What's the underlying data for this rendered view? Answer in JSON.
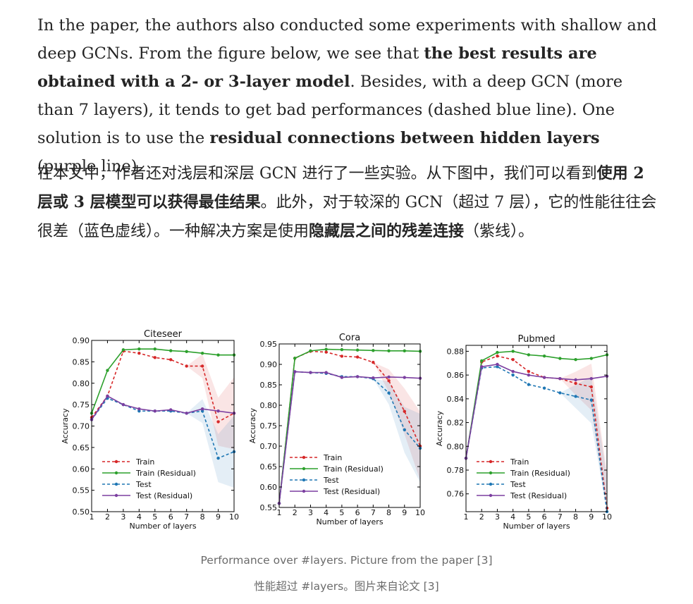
{
  "article": {
    "en": {
      "s1": "In the paper, the authors also conducted some experiments with shallow and deep GCNs. From the figure below, we see that ",
      "b1": "the best results are obtained with a 2- or 3-layer model",
      "s2": ". Besides, with a deep GCN (more than 7 layers), it tends to get bad performances (dashed blue line). One solution is to use the ",
      "b2": "residual connections between hidden layers",
      "s3": " (purple line)."
    },
    "zh": {
      "s1": "在本文中，作者还对浅层和深层 GCN 进行了一些实验。从下图中，我们可以看到",
      "b1": "使用 2 层或 3 层模型可以获得最佳结果",
      "s2": "。此外，对于较深的 GCN（超过 7 层），它的性能往往会很差（蓝色虚线）。一种解决方案是使用",
      "b2": "隐藏层之间的残差连接",
      "s3": "（紫线）。"
    }
  },
  "caption": {
    "en": "Performance over #layers. Picture from the paper [3]",
    "zh": "性能超过 #layers。图片来自论文 [3]"
  },
  "colors": {
    "train": "#d62728",
    "train_residual": "#2ca02c",
    "test": "#1f77b4",
    "test_residual": "#7b3fa0"
  },
  "chart_data": [
    {
      "type": "line",
      "title": "Citeseer",
      "xlabel": "Number of layers",
      "ylabel": "Accuracy",
      "x": [
        1,
        2,
        3,
        4,
        5,
        6,
        7,
        8,
        9,
        10
      ],
      "xticks": [
        "1",
        "2",
        "3",
        "4",
        "5",
        "6",
        "7",
        "8",
        "9",
        "10"
      ],
      "ylim": [
        0.5,
        0.9
      ],
      "yticks": [
        "0.50",
        "0.55",
        "0.60",
        "0.65",
        "0.70",
        "0.75",
        "0.80",
        "0.85",
        "0.90"
      ],
      "legend_position": "lower-left",
      "series": [
        {
          "name": "Train",
          "style": "dashed",
          "values": [
            0.72,
            0.77,
            0.875,
            0.87,
            0.86,
            0.855,
            0.84,
            0.84,
            0.71,
            0.73
          ]
        },
        {
          "name": "Train (Residual)",
          "style": "solid",
          "values": [
            0.73,
            0.83,
            0.878,
            0.88,
            0.88,
            0.876,
            0.874,
            0.87,
            0.866,
            0.866
          ]
        },
        {
          "name": "Test",
          "style": "dashed",
          "values": [
            0.715,
            0.765,
            0.75,
            0.735,
            0.735,
            0.735,
            0.73,
            0.735,
            0.625,
            0.64
          ]
        },
        {
          "name": "Test (Residual)",
          "style": "solid",
          "values": [
            0.715,
            0.77,
            0.75,
            0.74,
            0.735,
            0.738,
            0.73,
            0.74,
            0.735,
            0.73
          ]
        }
      ]
    },
    {
      "type": "line",
      "title": "Cora",
      "xlabel": "Number of layers",
      "ylabel": "Accuracy",
      "x": [
        1,
        2,
        3,
        4,
        5,
        6,
        7,
        8,
        9,
        10
      ],
      "xticks": [
        "1",
        "2",
        "3",
        "4",
        "5",
        "6",
        "7",
        "8",
        "9",
        "10"
      ],
      "ylim": [
        0.55,
        0.95
      ],
      "yticks": [
        "0.55",
        "0.60",
        "0.65",
        "0.70",
        "0.75",
        "0.80",
        "0.85",
        "0.90",
        "0.95"
      ],
      "legend_position": "lower-left",
      "series": [
        {
          "name": "Train",
          "style": "dashed",
          "values": [
            0.56,
            0.915,
            0.932,
            0.93,
            0.92,
            0.918,
            0.905,
            0.86,
            0.785,
            0.7
          ]
        },
        {
          "name": "Train (Residual)",
          "style": "solid",
          "values": [
            0.56,
            0.915,
            0.933,
            0.937,
            0.936,
            0.935,
            0.934,
            0.933,
            0.933,
            0.932
          ]
        },
        {
          "name": "Test",
          "style": "dashed",
          "values": [
            0.56,
            0.882,
            0.88,
            0.878,
            0.87,
            0.87,
            0.865,
            0.83,
            0.74,
            0.695
          ]
        },
        {
          "name": "Test (Residual)",
          "style": "solid",
          "values": [
            0.56,
            0.882,
            0.88,
            0.88,
            0.868,
            0.87,
            0.867,
            0.869,
            0.868,
            0.866
          ]
        }
      ]
    },
    {
      "type": "line",
      "title": "Pubmed",
      "xlabel": "Number of layers",
      "ylabel": "Accuracy",
      "x": [
        1,
        2,
        3,
        4,
        5,
        6,
        7,
        8,
        9,
        10
      ],
      "xticks": [
        "1",
        "2",
        "3",
        "4",
        "5",
        "6",
        "7",
        "8",
        "9",
        "10"
      ],
      "ylim": [
        0.745,
        0.885
      ],
      "yticks": [
        "0.76",
        "0.78",
        "0.80",
        "0.82",
        "0.84",
        "0.86",
        "0.88"
      ],
      "legend_position": "lower-left",
      "series": [
        {
          "name": "Train",
          "style": "dashed",
          "values": [
            0.79,
            0.871,
            0.876,
            0.873,
            0.863,
            0.858,
            0.857,
            0.853,
            0.85,
            0.748
          ]
        },
        {
          "name": "Train (Residual)",
          "style": "solid",
          "values": [
            0.79,
            0.872,
            0.879,
            0.88,
            0.877,
            0.876,
            0.874,
            0.873,
            0.874,
            0.877
          ]
        },
        {
          "name": "Test",
          "style": "dashed",
          "values": [
            0.79,
            0.866,
            0.867,
            0.86,
            0.852,
            0.849,
            0.845,
            0.842,
            0.839,
            0.745
          ]
        },
        {
          "name": "Test (Residual)",
          "style": "solid",
          "values": [
            0.79,
            0.867,
            0.869,
            0.863,
            0.86,
            0.858,
            0.857,
            0.856,
            0.857,
            0.859
          ]
        }
      ]
    }
  ]
}
